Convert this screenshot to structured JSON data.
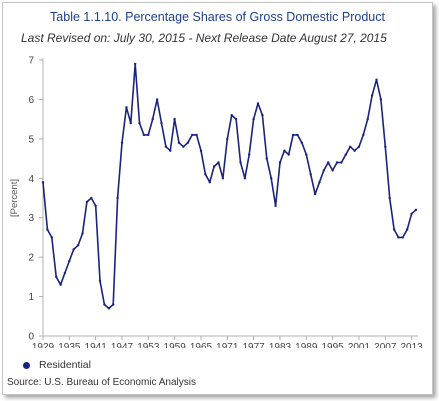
{
  "chart_data": {
    "type": "line",
    "title": "Table 1.1.10. Percentage Shares of Gross Domestic Product",
    "subtitle": "Last Revised on: July 30, 2015 - Next Release Date August 27, 2015",
    "ylabel": "[Percent]",
    "xlabel": "",
    "xlim": [
      1929,
      2014
    ],
    "ylim": [
      0,
      7
    ],
    "yticks": [
      0,
      1,
      2,
      3,
      4,
      5,
      6,
      7
    ],
    "xticks": [
      1929,
      1935,
      1941,
      1947,
      1953,
      1959,
      1965,
      1971,
      1977,
      1983,
      1989,
      1995,
      2001,
      2007,
      2013
    ],
    "grid": "none",
    "legend_position": "bottom-left",
    "line_color": "#1a237e",
    "series": [
      {
        "name": "Residential",
        "x": [
          1929,
          1930,
          1931,
          1932,
          1933,
          1934,
          1935,
          1936,
          1937,
          1938,
          1939,
          1940,
          1941,
          1942,
          1943,
          1944,
          1945,
          1946,
          1947,
          1948,
          1949,
          1950,
          1951,
          1952,
          1953,
          1954,
          1955,
          1956,
          1957,
          1958,
          1959,
          1960,
          1961,
          1962,
          1963,
          1964,
          1965,
          1966,
          1967,
          1968,
          1969,
          1970,
          1971,
          1972,
          1973,
          1974,
          1975,
          1976,
          1977,
          1978,
          1979,
          1980,
          1981,
          1982,
          1983,
          1984,
          1985,
          1986,
          1987,
          1988,
          1989,
          1990,
          1991,
          1992,
          1993,
          1994,
          1995,
          1996,
          1997,
          1998,
          1999,
          2000,
          2001,
          2002,
          2003,
          2004,
          2005,
          2006,
          2007,
          2008,
          2009,
          2010,
          2011,
          2012,
          2013,
          2014
        ],
        "values": [
          3.9,
          2.7,
          2.5,
          1.5,
          1.3,
          1.6,
          1.9,
          2.2,
          2.3,
          2.6,
          3.4,
          3.5,
          3.3,
          1.4,
          0.8,
          0.7,
          0.8,
          3.5,
          4.9,
          5.8,
          5.4,
          6.9,
          5.4,
          5.1,
          5.1,
          5.5,
          6.0,
          5.4,
          4.8,
          4.7,
          5.5,
          4.9,
          4.8,
          4.9,
          5.1,
          5.1,
          4.7,
          4.1,
          3.9,
          4.3,
          4.4,
          4.0,
          5.0,
          5.6,
          5.5,
          4.4,
          4.0,
          4.6,
          5.5,
          5.9,
          5.6,
          4.5,
          4.0,
          3.3,
          4.4,
          4.7,
          4.6,
          5.1,
          5.1,
          4.9,
          4.6,
          4.1,
          3.6,
          3.9,
          4.2,
          4.4,
          4.2,
          4.4,
          4.4,
          4.6,
          4.8,
          4.7,
          4.8,
          5.1,
          5.5,
          6.1,
          6.5,
          6.0,
          4.8,
          3.5,
          2.7,
          2.5,
          2.5,
          2.7,
          3.1,
          3.2
        ]
      }
    ]
  },
  "legend": {
    "series_label": "Residential"
  },
  "source": "Source: U.S. Bureau of Economic Analysis"
}
